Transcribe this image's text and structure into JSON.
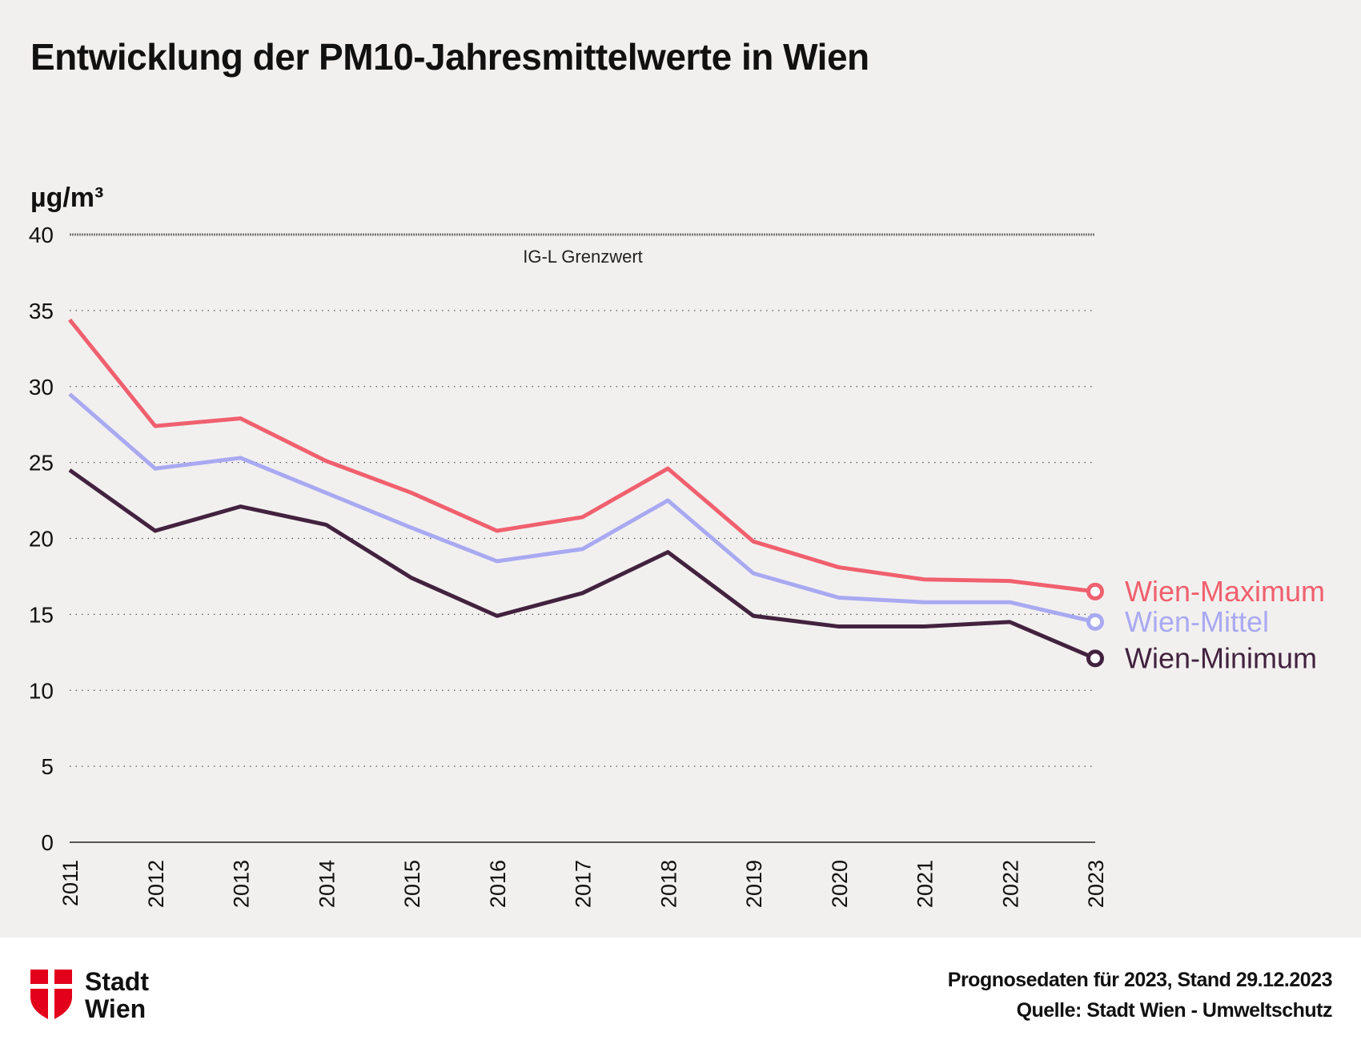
{
  "chart_data": {
    "type": "line",
    "title": "Entwicklung der PM10-Jahresmittelwerte in Wien",
    "ylabel": "µg/m³",
    "xlabel": "",
    "ylim": [
      0,
      40
    ],
    "yticks": [
      0,
      5,
      10,
      15,
      20,
      25,
      30,
      35,
      40
    ],
    "grid": true,
    "legend": "right",
    "x": [
      "2011",
      "2012",
      "2013",
      "2014",
      "2015",
      "2016",
      "2017",
      "2018",
      "2019",
      "2020",
      "2021",
      "2022",
      "2023"
    ],
    "series": [
      {
        "name": "Wien-Maximum",
        "color": "#f0606e",
        "values": [
          34.4,
          27.4,
          27.9,
          25.1,
          23.0,
          20.5,
          21.4,
          24.6,
          19.8,
          18.1,
          17.3,
          17.2,
          16.5
        ]
      },
      {
        "name": "Wien-Mittel",
        "color": "#a9a9f2",
        "values": [
          29.5,
          24.6,
          25.3,
          23.0,
          20.7,
          18.5,
          19.3,
          22.5,
          17.7,
          16.1,
          15.8,
          15.8,
          14.5
        ]
      },
      {
        "name": "Wien-Minimum",
        "color": "#42223f",
        "values": [
          24.5,
          20.5,
          22.1,
          20.9,
          17.4,
          14.9,
          16.4,
          19.1,
          14.9,
          14.2,
          14.2,
          14.5,
          12.1
        ]
      }
    ],
    "reference_line": {
      "value": 40,
      "label": "IG-L Grenzwert"
    }
  },
  "footer": {
    "logo_line1": "Stadt",
    "logo_line2": "Wien",
    "note": "Prognosedaten für 2023, Stand 29.12.2023",
    "source": "Quelle: Stadt Wien - Umweltschutz",
    "logo_color": "#e2001a"
  }
}
